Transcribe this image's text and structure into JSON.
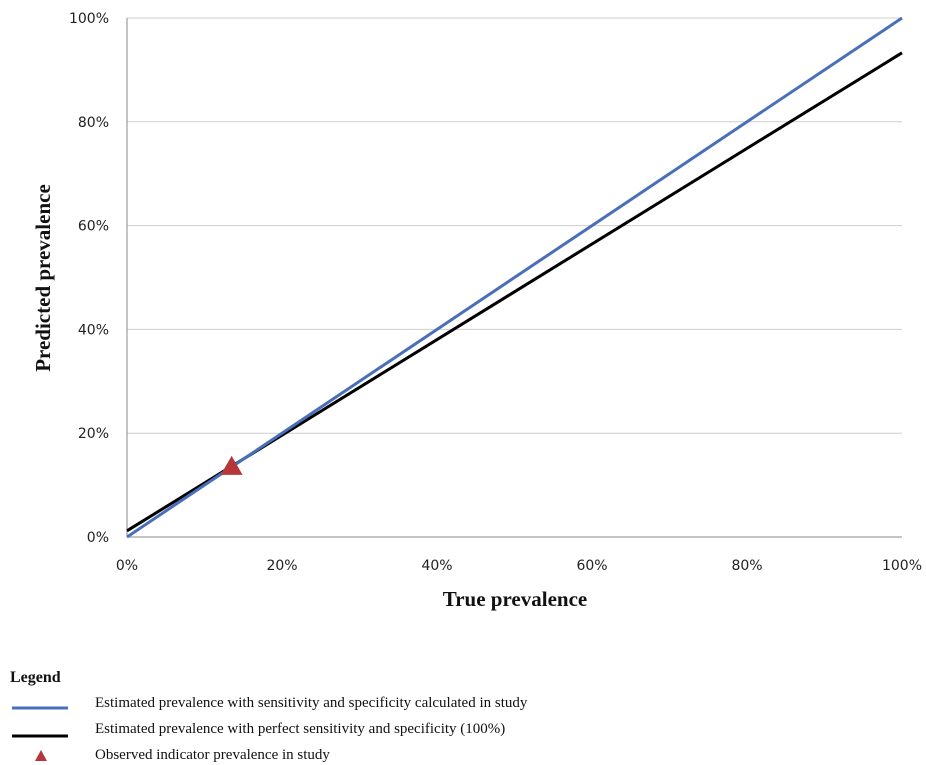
{
  "chart_data": {
    "type": "line",
    "title": "",
    "xlabel": "True prevalence",
    "ylabel": "Predicted prevalence",
    "xlim": [
      0,
      100
    ],
    "ylim": [
      0,
      100
    ],
    "x_ticks": [
      "0%",
      "20%",
      "40%",
      "60%",
      "80%",
      "100%"
    ],
    "y_ticks": [
      "0%",
      "20%",
      "40%",
      "60%",
      "80%",
      "100%"
    ],
    "grid": "horizontal",
    "series": [
      {
        "name": "Estimated prevalence with sensitivity and specificity calculated  in study",
        "color": "#4a6fba",
        "x": [
          0,
          100
        ],
        "y": [
          0,
          100
        ]
      },
      {
        "name": "Estimated prevalence with perfect sensitivity and specificity  (100%)",
        "color": "#000000",
        "x": [
          0,
          100
        ],
        "y": [
          1.2,
          93.3
        ]
      }
    ],
    "points": [
      {
        "name": "Observed indicator prevalence in study",
        "color": "#b5373a",
        "marker": "triangle",
        "x": 13.5,
        "y": 13.5
      }
    ],
    "legend": {
      "title": "Legend",
      "placement": "bottom-left"
    }
  }
}
